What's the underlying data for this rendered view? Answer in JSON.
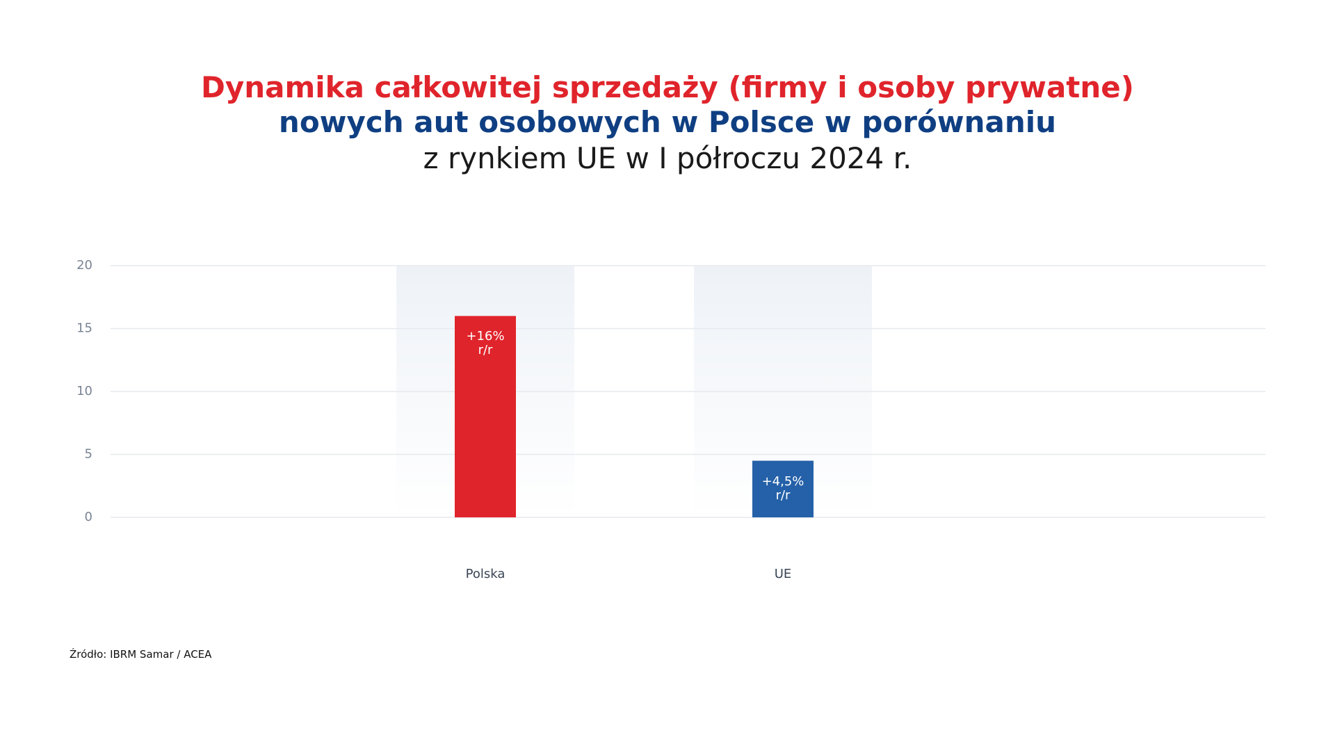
{
  "title": [
    "Dynamika całkowitej sprzedaży (firmy i osoby prywatne)",
    "nowych aut osobowych w Polsce w porównaniu",
    "z rynkiem UE w I półroczu 2024 r."
  ],
  "chart_data": {
    "type": "bar",
    "categories": [
      "Polska",
      "UE"
    ],
    "values": [
      16,
      4.5
    ],
    "value_labels": [
      "+16%\nr/r",
      "+4,5%\nr/r"
    ],
    "colors": [
      "#e0242b",
      "#2561a8"
    ],
    "ylim": [
      0,
      20
    ],
    "yticks": [
      0,
      5,
      10,
      15,
      20
    ],
    "grid": true
  },
  "source": "Źródło: IBRM Samar / ACEA"
}
